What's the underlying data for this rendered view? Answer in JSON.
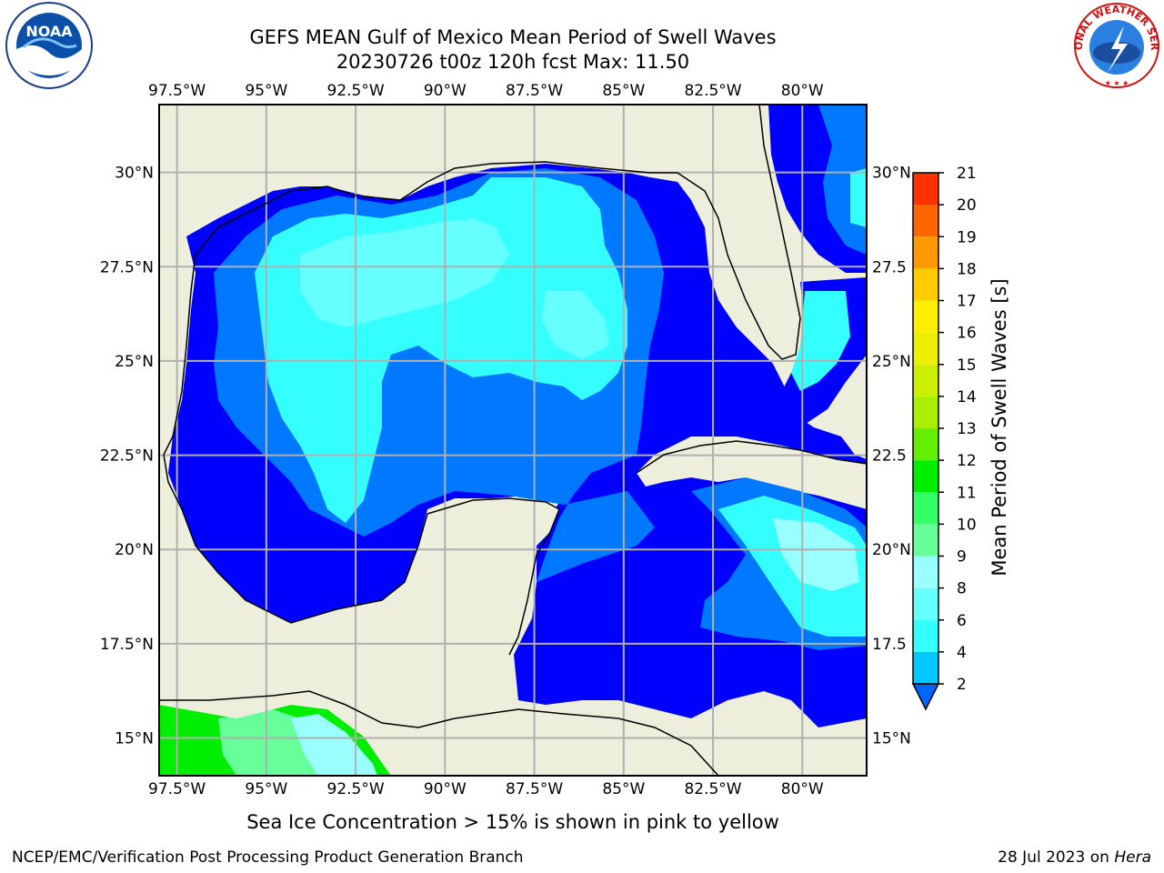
{
  "title": {
    "line1": "GEFS MEAN Gulf of Mexico Mean Period of Swell Waves",
    "line2": "20230726 t00z 120h fcst   Max: 11.50"
  },
  "logos": {
    "left": {
      "icon": "noaa-logo",
      "text": "NOAA"
    },
    "right": {
      "icon": "nws-logo",
      "text": "NATIONAL WEATHER SERVICE"
    }
  },
  "axes": {
    "lon_labels": [
      "97.5°W",
      "95°W",
      "92.5°W",
      "90°W",
      "87.5°W",
      "85°W",
      "82.5°W",
      "80°W"
    ],
    "lon_values": [
      -97.5,
      -95,
      -92.5,
      -90,
      -87.5,
      -85,
      -82.5,
      -80
    ],
    "lat_labels": [
      "30°N",
      "27.5°N",
      "25°N",
      "22.5°N",
      "20°N",
      "17.5°N",
      "15°N"
    ],
    "lat_values": [
      30,
      27.5,
      25,
      22.5,
      20,
      17.5,
      15
    ],
    "lat_labels_right": [
      "30°N",
      "27.5",
      "25°N",
      "22.5",
      "20°N",
      "17.5",
      "15°N"
    ],
    "lon_range": [
      -98,
      -78.2
    ],
    "lat_range": [
      14,
      31.8
    ],
    "grid": true
  },
  "colorbar": {
    "label": "Mean Period of Swell Waves [s]",
    "ticks": [
      "2",
      "4",
      "6",
      "8",
      "9",
      "10",
      "11",
      "12",
      "13",
      "14",
      "15",
      "16",
      "17",
      "18",
      "19",
      "20",
      "21"
    ],
    "colors": [
      "#0064ff",
      "#00c8ff",
      "#33ffff",
      "#66ffff",
      "#99ffff",
      "#66ff99",
      "#33ff66",
      "#00ee00",
      "#66ee00",
      "#aaee00",
      "#ccee00",
      "#eeee00",
      "#ffee00",
      "#ffcc00",
      "#ff9900",
      "#ff6600",
      "#ff3300",
      "#ff0000"
    ]
  },
  "colors": {
    "land": "#eeeedd",
    "deep_blue": "#0000ff",
    "blue": "#0078ff",
    "cyan": "#33ffff",
    "light_cyan": "#99ffff",
    "green": "#00ee00",
    "light_green": "#66ff99",
    "grid": "#b0b0b0"
  },
  "chart_data": {
    "type": "heatmap",
    "title": "GEFS MEAN Gulf of Mexico Mean Period of Swell Waves",
    "subtitle": "20230726 t00z 120h fcst   Max: 11.50",
    "max": 11.5,
    "colorbar_label": "Mean Period of Swell Waves [s]",
    "units": "s"
  },
  "footer": {
    "note": "Sea Ice Concentration > 15% is shown in pink to yellow",
    "credit": "NCEP/EMC/Verification Post Processing Product Generation Branch",
    "date": "28 Jul 2023 on ",
    "machine": "Hera"
  }
}
